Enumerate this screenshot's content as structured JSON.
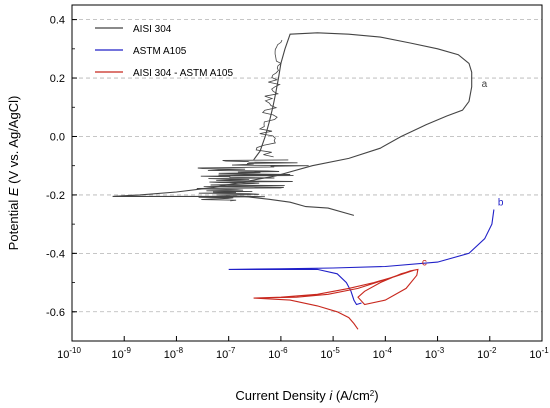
{
  "chart_data": {
    "type": "line",
    "xscale": "log",
    "xlim": [
      1e-10,
      0.1
    ],
    "ylim": [
      -0.7,
      0.45
    ],
    "xlabel_parts": [
      "Current Density ",
      "i",
      " (A/cm",
      "2",
      ")"
    ],
    "ylabel_parts": [
      "Potential ",
      "E",
      " (V vs. Ag/AgCl)"
    ],
    "x_ticks": [
      {
        "base": "10",
        "exp": "-10",
        "value": 1e-10
      },
      {
        "base": "10",
        "exp": "-9",
        "value": 1e-09
      },
      {
        "base": "10",
        "exp": "-8",
        "value": 1e-08
      },
      {
        "base": "10",
        "exp": "-7",
        "value": 1e-07
      },
      {
        "base": "10",
        "exp": "-6",
        "value": 1e-06
      },
      {
        "base": "10",
        "exp": "-5",
        "value": 1e-05
      },
      {
        "base": "10",
        "exp": "-4",
        "value": 0.0001
      },
      {
        "base": "10",
        "exp": "-3",
        "value": 0.001
      },
      {
        "base": "10",
        "exp": "-2",
        "value": 0.01
      },
      {
        "base": "10",
        "exp": "-1",
        "value": 0.1
      }
    ],
    "y_ticks": [
      {
        "label": "0.4",
        "value": 0.4
      },
      {
        "label": "0.2",
        "value": 0.2
      },
      {
        "label": "0.0",
        "value": 0.0
      },
      {
        "label": "-0.2",
        "value": -0.2
      },
      {
        "label": "-0.4",
        "value": -0.4
      },
      {
        "label": "-0.6",
        "value": -0.6
      }
    ],
    "grid": "horizontal dashed",
    "legend_position": "top-left",
    "series": [
      {
        "name": "AISI 304",
        "color": "#444444",
        "end_label": "a",
        "points": [
          [
            2.5e-05,
            -0.27
          ],
          [
            8e-06,
            -0.245
          ],
          [
            3e-06,
            -0.24
          ],
          [
            1.5e-06,
            -0.225
          ],
          [
            6e-07,
            -0.215
          ],
          [
            2e-07,
            -0.205
          ],
          [
            6e-08,
            -0.205
          ],
          [
            1e-08,
            -0.205
          ],
          [
            6e-10,
            -0.205
          ],
          [
            2e-09,
            -0.2
          ],
          [
            1e-08,
            -0.19
          ],
          [
            5e-08,
            -0.175
          ],
          [
            2e-07,
            -0.155
          ],
          [
            8e-07,
            -0.135
          ],
          [
            4e-06,
            -0.1
          ],
          [
            2e-05,
            -0.075
          ],
          [
            8e-05,
            -0.04
          ],
          [
            0.0002,
            0.0
          ],
          [
            0.0006,
            0.04
          ],
          [
            0.0015,
            0.07
          ],
          [
            0.003,
            0.09
          ],
          [
            0.004,
            0.12
          ],
          [
            0.0045,
            0.17
          ],
          [
            0.0045,
            0.22
          ],
          [
            0.004,
            0.25
          ],
          [
            0.0025,
            0.28
          ],
          [
            0.001,
            0.3
          ],
          [
            0.0003,
            0.32
          ],
          [
            8e-05,
            0.34
          ],
          [
            2e-05,
            0.35
          ],
          [
            5e-06,
            0.355
          ],
          [
            1.5e-06,
            0.35
          ],
          [
            1.2e-06,
            0.3
          ],
          [
            1e-06,
            0.25
          ],
          [
            9e-07,
            0.2
          ],
          [
            8e-07,
            0.15
          ],
          [
            7e-07,
            0.1
          ],
          [
            6e-07,
            0.05
          ],
          [
            5e-07,
            0.0
          ],
          [
            4e-07,
            -0.05
          ],
          [
            3e-07,
            -0.08
          ]
        ],
        "noise_band": {
          "y_from": -0.22,
          "y_to": -0.08,
          "x_from": 2e-08,
          "x_to": 6e-06
        }
      },
      {
        "name": "ASTM A105",
        "color": "#2020c8",
        "end_label": "b",
        "points": [
          [
            3.5e-05,
            -0.57
          ],
          [
            2.8e-05,
            -0.575
          ],
          [
            2.5e-05,
            -0.56
          ],
          [
            2.2e-05,
            -0.53
          ],
          [
            1.8e-05,
            -0.5
          ],
          [
            1.2e-05,
            -0.47
          ],
          [
            5e-06,
            -0.455
          ],
          [
            1e-06,
            -0.455
          ],
          [
            1e-07,
            -0.455
          ],
          [
            1e-06,
            -0.453
          ],
          [
            1e-05,
            -0.45
          ],
          [
            0.0001,
            -0.445
          ],
          [
            0.001,
            -0.43
          ],
          [
            0.004,
            -0.4
          ],
          [
            0.008,
            -0.35
          ],
          [
            0.011,
            -0.3
          ],
          [
            0.012,
            -0.25
          ]
        ]
      },
      {
        "name": "AISI 304 - ASTM A105",
        "color": "#c8281e",
        "end_label": "c",
        "points": [
          [
            3e-05,
            -0.66
          ],
          [
            2.5e-05,
            -0.64
          ],
          [
            2e-05,
            -0.62
          ],
          [
            1.2e-05,
            -0.6
          ],
          [
            5e-06,
            -0.58
          ],
          [
            1.5e-06,
            -0.56
          ],
          [
            3e-07,
            -0.553
          ],
          [
            1e-06,
            -0.55
          ],
          [
            5e-06,
            -0.54
          ],
          [
            2e-05,
            -0.52
          ],
          [
            6e-05,
            -0.5
          ],
          [
            0.00015,
            -0.48
          ],
          [
            0.00035,
            -0.458
          ],
          [
            0.0002,
            -0.47
          ],
          [
            8e-05,
            -0.5
          ],
          [
            4e-05,
            -0.53
          ],
          [
            3e-05,
            -0.55
          ],
          [
            4e-05,
            -0.575
          ],
          [
            0.0001,
            -0.56
          ],
          [
            0.00025,
            -0.52
          ],
          [
            0.0004,
            -0.475
          ],
          [
            0.00042,
            -0.455
          ],
          [
            0.0003,
            -0.46
          ],
          [
            0.0001,
            -0.49
          ],
          [
            3e-05,
            -0.52
          ],
          [
            8e-06,
            -0.54
          ],
          [
            2e-06,
            -0.55
          ],
          [
            5e-07,
            -0.552
          ]
        ]
      }
    ]
  }
}
